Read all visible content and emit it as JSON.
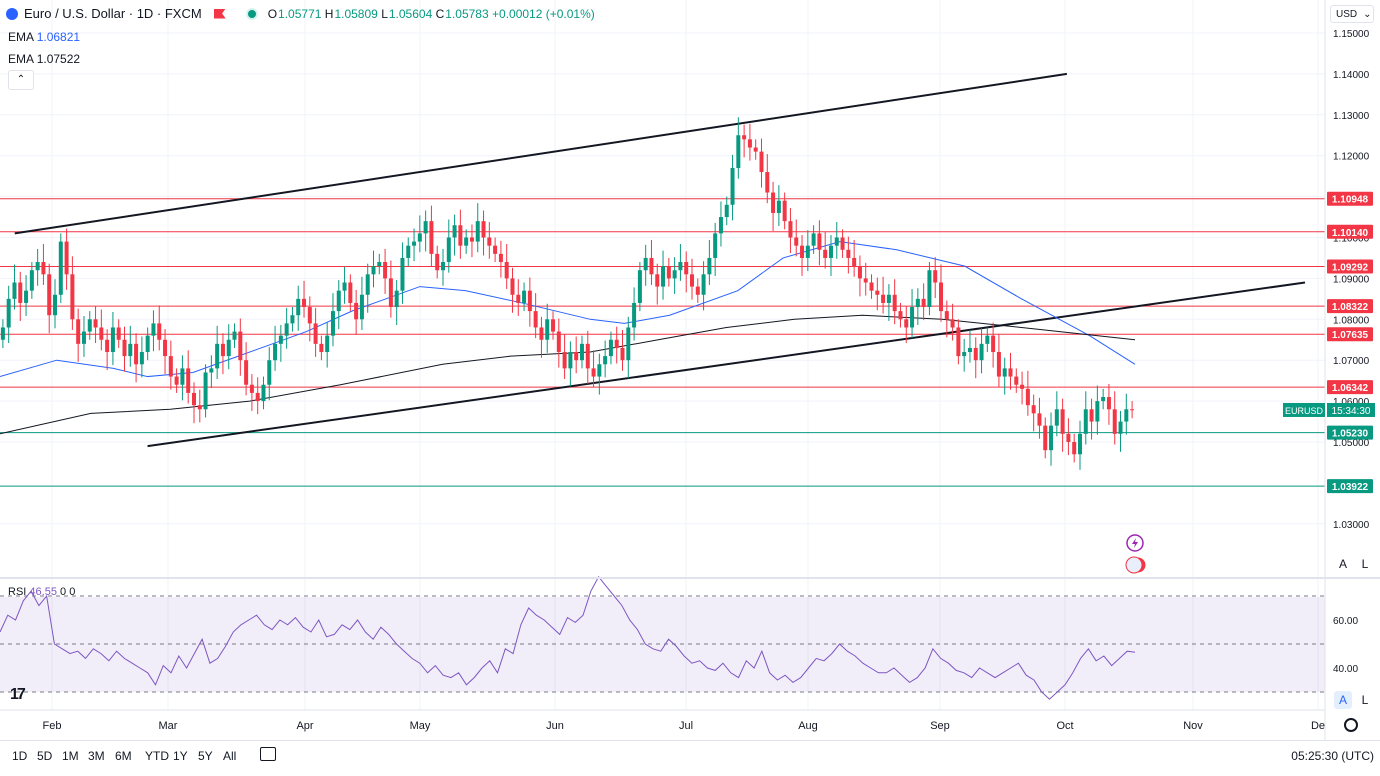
{
  "header": {
    "symbol": "Euro / U.S. Dollar · 1D · FXCM",
    "open_label": "O",
    "open": "1.05771",
    "high_label": "H",
    "high": "1.05809",
    "low_label": "L",
    "low": "1.05604",
    "close_label": "C",
    "close": "1.05783",
    "change": "+0.00012 (+0.01%)"
  },
  "indicators": {
    "ema1": {
      "label": "EMA",
      "value": "1.06821",
      "color": "#2962ff"
    },
    "ema2": {
      "label": "EMA",
      "value": "1.07522",
      "color": "#131722"
    },
    "rsi": {
      "label": "RSI",
      "value": "46.55",
      "extra1": "0",
      "extra2": "0"
    }
  },
  "collapse_icon": "chevron-up-icon",
  "currency_button": "USD",
  "auto_label": "A",
  "log_label": "L",
  "price_ticks": [
    "1.15000",
    "1.14000",
    "1.13000",
    "1.12000",
    "1.11000",
    "1.10000",
    "1.09000",
    "1.08000",
    "1.07000",
    "1.06000",
    "1.05000",
    "1.03000"
  ],
  "rsi_ticks": [
    "60.00",
    "40.00"
  ],
  "time_labels": [
    "Feb",
    "Mar",
    "Apr",
    "May",
    "Jun",
    "Jul",
    "Aug",
    "Sep",
    "Oct",
    "Nov",
    "De"
  ],
  "levels": [
    {
      "label": "1.10948",
      "color": "#f23645"
    },
    {
      "label": "1.10140",
      "color": "#f23645"
    },
    {
      "label": "1.09292",
      "color": "#f23645"
    },
    {
      "label": "1.08322",
      "color": "#f23645"
    },
    {
      "label": "1.07635",
      "color": "#f23645"
    },
    {
      "label": "1.06342",
      "color": "#f23645"
    },
    {
      "label": "1.05230",
      "color": "#089981"
    },
    {
      "label": "1.03922",
      "color": "#089981"
    }
  ],
  "last_price": {
    "symbol": "EURUSD",
    "countdown": "15:34:30"
  },
  "range_buttons": [
    "1D",
    "5D",
    "1M",
    "3M",
    "6M",
    "YTD",
    "1Y",
    "5Y",
    "All"
  ],
  "clock": "05:25:30 (UTC)",
  "chart_data": {
    "type": "candlestick",
    "title": "Euro / U.S. Dollar · 1D · FXCM",
    "x_range": [
      "2024-01-15",
      "2024-12-01"
    ],
    "y_range": [
      1.025,
      1.155
    ],
    "colors": {
      "up": "#089981",
      "down": "#f23645",
      "ema_fast": "#2962ff",
      "ema_slow": "#131722",
      "rsi": "#7e57c2"
    },
    "grid": true,
    "close_path": [
      1.078,
      1.085,
      1.089,
      1.084,
      1.087,
      1.092,
      1.094,
      1.091,
      1.081,
      1.086,
      1.099,
      1.091,
      1.08,
      1.074,
      1.077,
      1.08,
      1.078,
      1.075,
      1.072,
      1.078,
      1.075,
      1.071,
      1.074,
      1.069,
      1.072,
      1.076,
      1.079,
      1.075,
      1.071,
      1.066,
      1.064,
      1.068,
      1.062,
      1.059,
      1.058,
      1.067,
      1.068,
      1.074,
      1.071,
      1.075,
      1.077,
      1.07,
      1.064,
      1.062,
      1.06,
      1.064,
      1.07,
      1.074,
      1.076,
      1.079,
      1.081,
      1.085,
      1.083,
      1.079,
      1.074,
      1.072,
      1.076,
      1.082,
      1.087,
      1.089,
      1.084,
      1.08,
      1.086,
      1.091,
      1.093,
      1.094,
      1.09,
      1.083,
      1.087,
      1.095,
      1.098,
      1.099,
      1.101,
      1.104,
      1.096,
      1.092,
      1.094,
      1.1,
      1.103,
      1.098,
      1.1,
      1.099,
      1.104,
      1.1,
      1.098,
      1.096,
      1.094,
      1.09,
      1.086,
      1.084,
      1.087,
      1.082,
      1.078,
      1.075,
      1.08,
      1.077,
      1.072,
      1.068,
      1.072,
      1.07,
      1.074,
      1.068,
      1.066,
      1.069,
      1.071,
      1.075,
      1.073,
      1.07,
      1.078,
      1.084,
      1.092,
      1.095,
      1.091,
      1.088,
      1.093,
      1.09,
      1.092,
      1.094,
      1.091,
      1.088,
      1.086,
      1.091,
      1.095,
      1.101,
      1.105,
      1.108,
      1.117,
      1.125,
      1.124,
      1.122,
      1.121,
      1.116,
      1.111,
      1.106,
      1.109,
      1.104,
      1.1,
      1.098,
      1.095,
      1.098,
      1.101,
      1.097,
      1.095,
      1.098,
      1.1,
      1.097,
      1.095,
      1.093,
      1.09,
      1.089,
      1.087,
      1.086,
      1.084,
      1.086,
      1.082,
      1.08,
      1.078,
      1.083,
      1.085,
      1.083,
      1.092,
      1.089,
      1.082,
      1.08,
      1.078,
      1.071,
      1.072,
      1.073,
      1.07,
      1.074,
      1.076,
      1.072,
      1.066,
      1.068,
      1.066,
      1.064,
      1.063,
      1.059,
      1.057,
      1.054,
      1.048,
      1.054,
      1.058,
      1.052,
      1.05,
      1.047,
      1.052,
      1.058,
      1.055,
      1.06,
      1.061,
      1.058,
      1.052,
      1.055,
      1.058,
      1.0578
    ],
    "ema_fast": [
      [
        1.066,
        0
      ],
      [
        1.07,
        0.05
      ],
      [
        1.068,
        0.1
      ],
      [
        1.066,
        0.13
      ],
      [
        1.067,
        0.17
      ],
      [
        1.071,
        0.21
      ],
      [
        1.077,
        0.27
      ],
      [
        1.082,
        0.31
      ],
      [
        1.088,
        0.37
      ],
      [
        1.087,
        0.41
      ],
      [
        1.084,
        0.46
      ],
      [
        1.08,
        0.52
      ],
      [
        1.079,
        0.55
      ],
      [
        1.081,
        0.59
      ],
      [
        1.087,
        0.65
      ],
      [
        1.095,
        0.69
      ],
      [
        1.099,
        0.74
      ],
      [
        1.097,
        0.79
      ],
      [
        1.093,
        0.85
      ],
      [
        1.085,
        0.9
      ],
      [
        1.076,
        0.96
      ],
      [
        1.069,
        1.0
      ]
    ],
    "ema_slow": [
      [
        1.052,
        0
      ],
      [
        1.057,
        0.08
      ],
      [
        1.058,
        0.15
      ],
      [
        1.06,
        0.22
      ],
      [
        1.064,
        0.3
      ],
      [
        1.069,
        0.39
      ],
      [
        1.071,
        0.45
      ],
      [
        1.072,
        0.52
      ],
      [
        1.075,
        0.58
      ],
      [
        1.078,
        0.64
      ],
      [
        1.08,
        0.7
      ],
      [
        1.081,
        0.76
      ],
      [
        1.08,
        0.83
      ],
      [
        1.078,
        0.9
      ],
      [
        1.075,
        1.0
      ]
    ],
    "trendlines": [
      {
        "from": [
          0.013,
          1.101
        ],
        "to": [
          0.94,
          1.14
        ]
      },
      {
        "from": [
          0.13,
          1.049
        ],
        "to": [
          1.0,
          1.089
        ]
      }
    ],
    "rsi": {
      "range": [
        20,
        80
      ],
      "bands": [
        70,
        50,
        30
      ],
      "values": [
        55,
        62,
        60,
        68,
        72,
        66,
        70,
        50,
        48,
        46,
        47,
        44,
        48,
        46,
        43,
        47,
        44,
        42,
        40,
        38,
        33,
        41,
        38,
        45,
        40,
        46,
        52,
        42,
        44,
        49,
        55,
        58,
        60,
        62,
        58,
        56,
        60,
        58,
        61,
        57,
        55,
        60,
        53,
        54,
        58,
        56,
        60,
        55,
        52,
        57,
        54,
        50,
        47,
        44,
        42,
        38,
        41,
        37,
        36,
        38,
        33,
        36,
        40,
        43,
        38,
        48,
        46,
        58,
        65,
        62,
        60,
        57,
        54,
        61,
        59,
        62,
        72,
        78,
        74,
        70,
        66,
        60,
        56,
        50,
        48,
        47,
        52,
        49,
        45,
        42,
        43,
        40,
        39,
        42,
        38,
        36,
        43,
        40,
        47,
        38,
        35,
        37,
        34,
        36,
        40,
        44,
        43,
        46,
        50,
        47,
        45,
        42,
        40,
        38,
        38,
        40,
        37,
        34,
        36,
        40,
        48,
        44,
        42,
        39,
        38,
        36,
        40,
        38,
        36,
        38,
        40,
        42,
        37,
        35,
        30,
        27,
        30,
        33,
        38,
        44,
        48,
        43,
        45,
        41,
        44,
        47,
        46.55
      ]
    }
  }
}
